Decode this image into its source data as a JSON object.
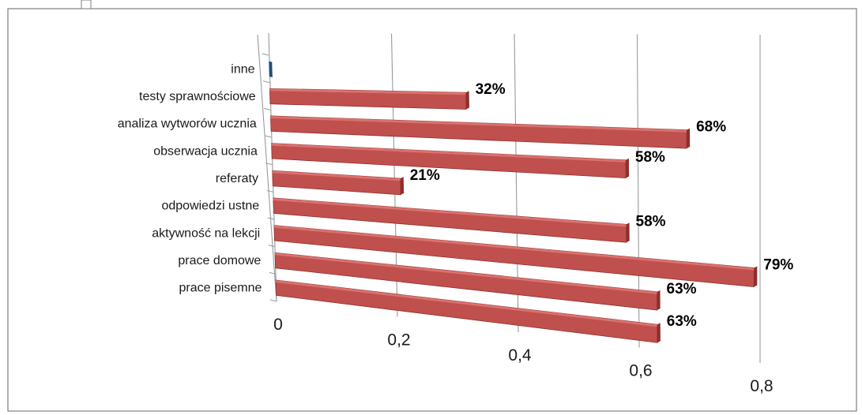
{
  "chart_data": {
    "type": "bar",
    "orientation": "horizontal",
    "three_d": true,
    "categories": [
      "inne",
      "testy sprawnościowe",
      "analiza wytworów ucznia",
      "obserwacja ucznia",
      "referaty",
      "odpowiedzi ustne",
      "aktywność na lekcji",
      "prace domowe",
      "prace pisemne"
    ],
    "values": [
      0,
      0.32,
      0.68,
      0.58,
      0.21,
      0.58,
      0.79,
      0.63,
      0.63
    ],
    "data_labels": [
      "",
      "32%",
      "68%",
      "58%",
      "21%",
      "58%",
      "79%",
      "63%",
      "63%"
    ],
    "x_ticks": [
      "0",
      "0,2",
      "0,4",
      "0,6",
      "0,8"
    ],
    "xlim": [
      0,
      0.8
    ],
    "grid": true,
    "legend": "none",
    "colors": {
      "bar": "#c0504d",
      "bar_top": "#e07b78",
      "bar_dark": "#8e2f2c",
      "bar_small": "#1f4e79",
      "grid": "#9a9a9a",
      "border": "#7f7f7f"
    }
  }
}
